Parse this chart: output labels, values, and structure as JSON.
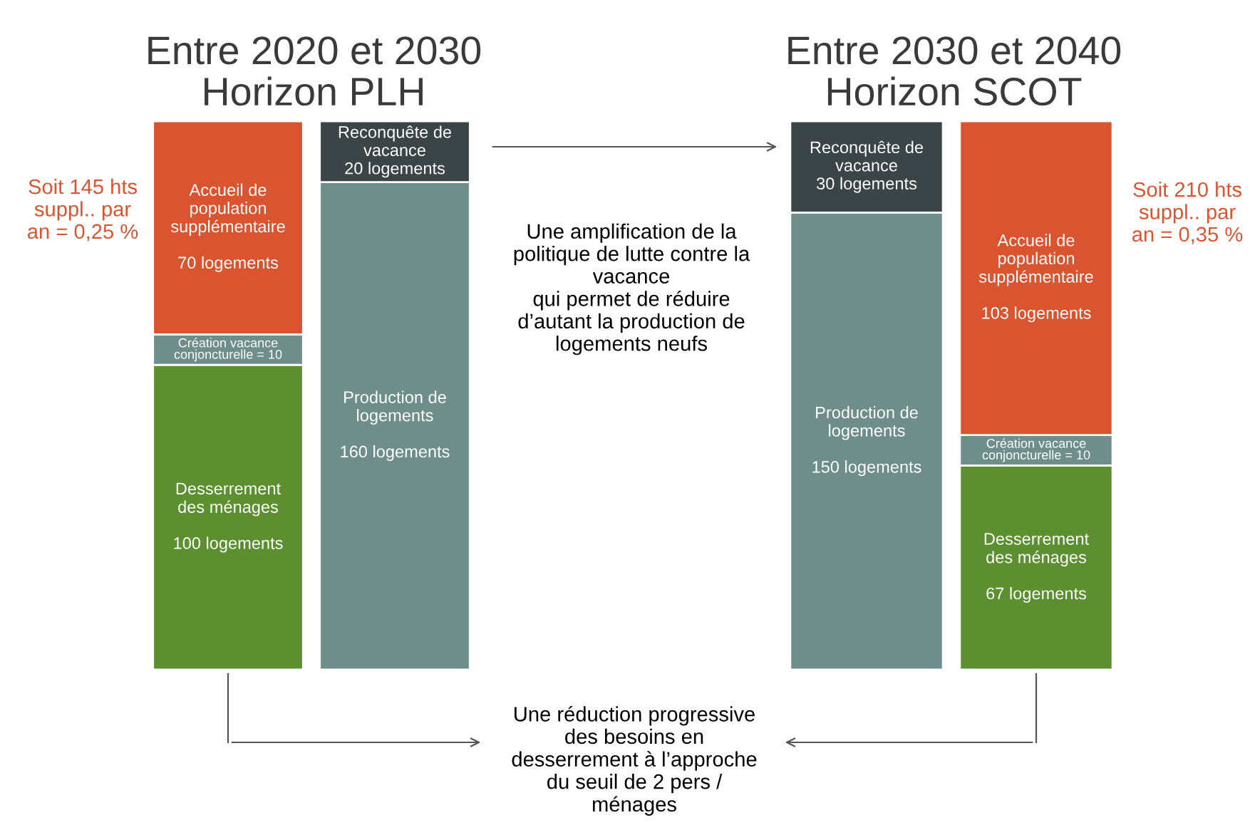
{
  "chart_data": [
    {
      "type": "bar",
      "title": "Entre 2020 et 2030\nHorizon PLH",
      "stacked": true,
      "categories": [
        null,
        null
      ],
      "series": [
        {
          "color": "#5b8f2f",
          "values": [
            100,
            null
          ],
          "value_labels": [
            "Desserrement\ndes ménages\n\n100 logements",
            null
          ]
        },
        {
          "color": "#6e8e8b",
          "values": [
            10,
            null
          ],
          "value_labels": [
            "Création vacance\nconjoncturelle = 10",
            null
          ]
        },
        {
          "color": "#d9542f",
          "values": [
            70,
            null
          ],
          "value_labels": [
            "Accueil de\npopulation\nsupplémentaire\n\n70 logements",
            null
          ]
        },
        {
          "color": "#6e8e8b",
          "values": [
            null,
            160
          ],
          "value_labels": [
            null,
            "Production de\nlogements\n\n160 logements"
          ]
        },
        {
          "color": "#3b4446",
          "values": [
            null,
            20
          ],
          "value_labels": [
            null,
            "Reconquête de\nvacance\n20 logements"
          ]
        }
      ],
      "annotations": [
        "Soit 145 hts\nsuppl.. par\nan = 0,25 %"
      ]
    },
    {
      "type": "bar",
      "title": "Entre 2030 et 2040\nHorizon SCOT",
      "stacked": true,
      "categories": [
        null,
        null
      ],
      "series": [
        {
          "color": "#6e8e8b",
          "values": [
            150,
            null
          ],
          "value_labels": [
            "Production de\nlogements\n\n150 logements",
            null
          ]
        },
        {
          "color": "#3b4446",
          "values": [
            30,
            null
          ],
          "value_labels": [
            "Reconquête de\nvacance\n30 logements",
            null
          ]
        },
        {
          "color": "#5b8f2f",
          "values": [
            null,
            67
          ],
          "value_labels": [
            null,
            "Desserrement\ndes ménages\n\n67 logements"
          ]
        },
        {
          "color": "#6e8e8b",
          "values": [
            null,
            10
          ],
          "value_labels": [
            null,
            "Création vacance\nconjoncturelle = 10"
          ]
        },
        {
          "color": "#d9542f",
          "values": [
            null,
            103
          ],
          "value_labels": [
            null,
            "Accueil de\npopulation\nsupplémentaire\n\n103 logements"
          ]
        }
      ],
      "annotations": [
        "Soit 210 hts\nsuppl.. par\nan = 0,35 %",
        "Une amplification de la\npolitique de lutte contre la\nvacance\nqui permet de réduire\nd’autant la production de\nlogements neufs",
        "Une réduction progressive\ndes besoins en\ndesserrement à l’approche\ndu seuil de 2 pers /\nménages"
      ]
    }
  ]
}
